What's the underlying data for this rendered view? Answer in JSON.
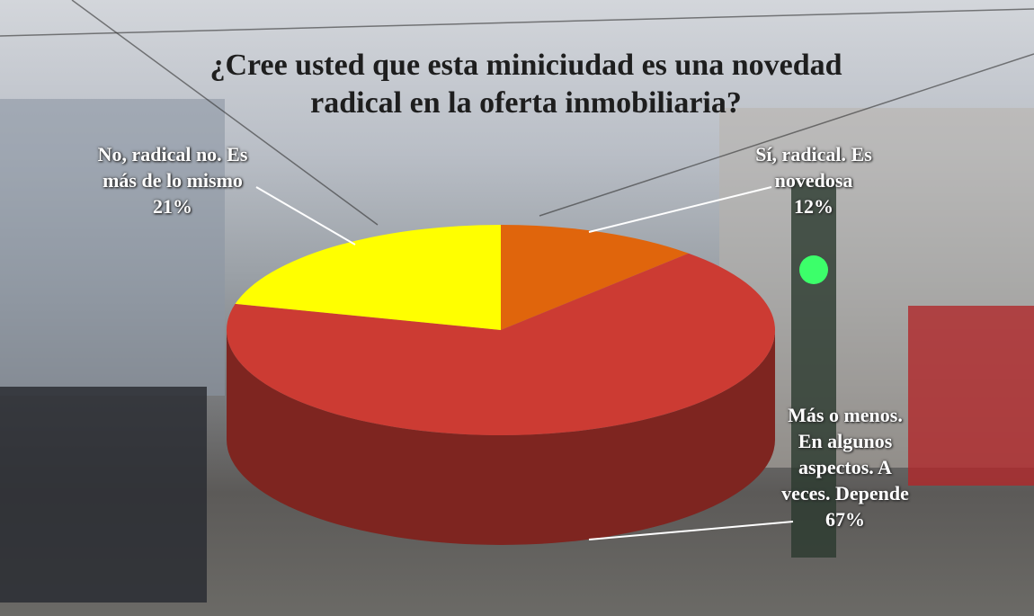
{
  "chart_data": {
    "type": "pie3d",
    "title": "¿Cree usted que esta miniciudad es una novedad radical en la oferta inmobiliaria?",
    "categories": [
      "Sí, radical. Es novedosa",
      "Más o menos. En algunos aspectos. A veces. Depende",
      "No, radical no. Es más de lo mismo"
    ],
    "values": [
      12,
      67,
      21
    ],
    "value_labels": [
      "12%",
      "67%",
      "21%"
    ],
    "colors": [
      "#e0650c",
      "#cc3b33",
      "#ffff00"
    ]
  }
}
